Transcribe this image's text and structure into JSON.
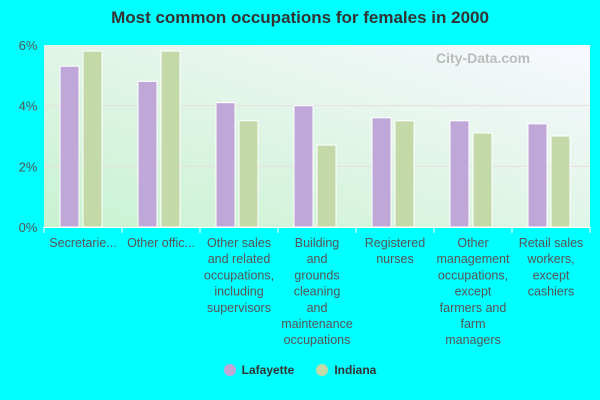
{
  "chart_data": {
    "type": "bar",
    "title": "Most common occupations for females in 2000",
    "categories": [
      "Secretarie...",
      "Other offic...",
      "Other sales and related occupations, including supervisors",
      "Building and grounds cleaning and maintenance occupations",
      "Registered nurses",
      "Other management occupations, except farmers and farm managers",
      "Retail sales workers, except cashiers"
    ],
    "category_lines": [
      [
        "Secretarie..."
      ],
      [
        "Other offic..."
      ],
      [
        "Other sales",
        "and related",
        "occupations,",
        "including",
        "supervisors"
      ],
      [
        "Building",
        "and",
        "grounds",
        "cleaning",
        "and",
        "maintenance",
        "occupations"
      ],
      [
        "Registered",
        "nurses"
      ],
      [
        "Other",
        "management",
        "occupations,",
        "except",
        "farmers and",
        "farm",
        "managers"
      ],
      [
        "Retail sales",
        "workers,",
        "except",
        "cashiers"
      ]
    ],
    "series": [
      {
        "name": "Lafayette",
        "color": "#bfa8d8",
        "values": [
          5.3,
          4.8,
          4.1,
          4.0,
          3.6,
          3.5,
          3.4
        ]
      },
      {
        "name": "Indiana",
        "color": "#c4d9a8",
        "values": [
          5.8,
          5.8,
          3.5,
          2.7,
          3.5,
          3.1,
          3.0
        ]
      }
    ],
    "yticks": [
      "0%",
      "2%",
      "4%",
      "6%"
    ],
    "ylim": [
      0,
      6
    ],
    "ylabel": "",
    "xlabel": "",
    "grid": true,
    "legend": "bottom",
    "watermark": "City-Data.com"
  }
}
